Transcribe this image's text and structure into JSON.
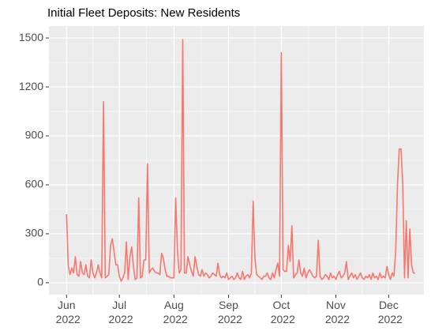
{
  "chart_data": {
    "type": "line",
    "title": "Initial Fleet Deposits: New Residents",
    "color": "#f8766d",
    "grid": true,
    "x": [
      "2022-06-01",
      "2022-06-02",
      "2022-06-03",
      "2022-06-04",
      "2022-06-05",
      "2022-06-06",
      "2022-06-07",
      "2022-06-08",
      "2022-06-09",
      "2022-06-10",
      "2022-06-11",
      "2022-06-12",
      "2022-06-13",
      "2022-06-14",
      "2022-06-15",
      "2022-06-16",
      "2022-06-17",
      "2022-06-18",
      "2022-06-19",
      "2022-06-20",
      "2022-06-21",
      "2022-06-22",
      "2022-06-23",
      "2022-06-24",
      "2022-06-25",
      "2022-06-26",
      "2022-06-27",
      "2022-06-28",
      "2022-06-29",
      "2022-06-30",
      "2022-07-01",
      "2022-07-02",
      "2022-07-03",
      "2022-07-04",
      "2022-07-05",
      "2022-07-06",
      "2022-07-07",
      "2022-07-08",
      "2022-07-09",
      "2022-07-10",
      "2022-07-11",
      "2022-07-12",
      "2022-07-13",
      "2022-07-14",
      "2022-07-15",
      "2022-07-16",
      "2022-07-17",
      "2022-07-18",
      "2022-07-19",
      "2022-07-20",
      "2022-07-21",
      "2022-07-22",
      "2022-07-23",
      "2022-07-24",
      "2022-07-25",
      "2022-07-26",
      "2022-07-27",
      "2022-07-28",
      "2022-07-29",
      "2022-07-30",
      "2022-07-31",
      "2022-08-01",
      "2022-08-02",
      "2022-08-03",
      "2022-08-04",
      "2022-08-05",
      "2022-08-06",
      "2022-08-07",
      "2022-08-08",
      "2022-08-09",
      "2022-08-10",
      "2022-08-11",
      "2022-08-12",
      "2022-08-13",
      "2022-08-14",
      "2022-08-15",
      "2022-08-16",
      "2022-08-17",
      "2022-08-18",
      "2022-08-19",
      "2022-08-20",
      "2022-08-21",
      "2022-08-22",
      "2022-08-23",
      "2022-08-24",
      "2022-08-25",
      "2022-08-26",
      "2022-08-27",
      "2022-08-28",
      "2022-08-29",
      "2022-08-30",
      "2022-08-31",
      "2022-09-01",
      "2022-09-02",
      "2022-09-03",
      "2022-09-04",
      "2022-09-05",
      "2022-09-06",
      "2022-09-07",
      "2022-09-08",
      "2022-09-09",
      "2022-09-10",
      "2022-09-11",
      "2022-09-12",
      "2022-09-13",
      "2022-09-14",
      "2022-09-15",
      "2022-09-16",
      "2022-09-17",
      "2022-09-18",
      "2022-09-19",
      "2022-09-20",
      "2022-09-21",
      "2022-09-22",
      "2022-09-23",
      "2022-09-24",
      "2022-09-25",
      "2022-09-26",
      "2022-09-27",
      "2022-09-28",
      "2022-09-29",
      "2022-09-30",
      "2022-10-01",
      "2022-10-02",
      "2022-10-03",
      "2022-10-04",
      "2022-10-05",
      "2022-10-06",
      "2022-10-07",
      "2022-10-08",
      "2022-10-09",
      "2022-10-10",
      "2022-10-11",
      "2022-10-12",
      "2022-10-13",
      "2022-10-14",
      "2022-10-15",
      "2022-10-16",
      "2022-10-17",
      "2022-10-18",
      "2022-10-19",
      "2022-10-20",
      "2022-10-21",
      "2022-10-22",
      "2022-10-23",
      "2022-10-24",
      "2022-10-25",
      "2022-10-26",
      "2022-10-27",
      "2022-10-28",
      "2022-10-29",
      "2022-10-30",
      "2022-10-31",
      "2022-11-01",
      "2022-11-02",
      "2022-11-03",
      "2022-11-04",
      "2022-11-05",
      "2022-11-06",
      "2022-11-07",
      "2022-11-08",
      "2022-11-09",
      "2022-11-10",
      "2022-11-11",
      "2022-11-12",
      "2022-11-13",
      "2022-11-14",
      "2022-11-15",
      "2022-11-16",
      "2022-11-17",
      "2022-11-18",
      "2022-11-19",
      "2022-11-20",
      "2022-11-21",
      "2022-11-22",
      "2022-11-23",
      "2022-11-24",
      "2022-11-25",
      "2022-11-26",
      "2022-11-27",
      "2022-11-28",
      "2022-11-29",
      "2022-11-30",
      "2022-12-01",
      "2022-12-02",
      "2022-12-03",
      "2022-12-04",
      "2022-12-05",
      "2022-12-06",
      "2022-12-07",
      "2022-12-08",
      "2022-12-09",
      "2022-12-10",
      "2022-12-11",
      "2022-12-12",
      "2022-12-13",
      "2022-12-14",
      "2022-12-15",
      "2022-12-16"
    ],
    "values": [
      420,
      100,
      50,
      90,
      60,
      160,
      50,
      40,
      130,
      60,
      50,
      110,
      40,
      30,
      140,
      60,
      30,
      60,
      110,
      60,
      30,
      1110,
      30,
      40,
      50,
      230,
      270,
      190,
      110,
      110,
      40,
      10,
      30,
      60,
      250,
      20,
      160,
      220,
      100,
      20,
      30,
      520,
      30,
      40,
      140,
      140,
      730,
      60,
      80,
      90,
      70,
      60,
      60,
      50,
      180,
      150,
      80,
      40,
      40,
      30,
      30,
      30,
      520,
      200,
      60,
      80,
      1490,
      60,
      60,
      160,
      110,
      70,
      40,
      160,
      100,
      50,
      40,
      80,
      40,
      60,
      50,
      30,
      40,
      60,
      50,
      40,
      120,
      50,
      30,
      40,
      30,
      60,
      20,
      30,
      40,
      20,
      30,
      60,
      30,
      20,
      70,
      20,
      40,
      50,
      30,
      60,
      500,
      150,
      50,
      40,
      30,
      20,
      40,
      40,
      60,
      30,
      20,
      60,
      30,
      80,
      120,
      40,
      1410,
      80,
      70,
      70,
      230,
      130,
      350,
      30,
      50,
      60,
      140,
      60,
      40,
      90,
      30,
      60,
      80,
      60,
      40,
      30,
      40,
      260,
      40,
      20,
      30,
      50,
      40,
      20,
      60,
      30,
      40,
      20,
      50,
      70,
      30,
      40,
      60,
      130,
      20,
      40,
      60,
      30,
      50,
      20,
      40,
      60,
      30,
      20,
      40,
      30,
      50,
      20,
      60,
      30,
      40,
      20,
      60,
      30,
      40,
      30,
      100,
      50,
      20,
      60,
      40,
      200,
      600,
      820,
      820,
      600,
      30,
      380,
      30,
      330,
      110,
      60,
      60
    ],
    "xlim": [
      "2022-05-22",
      "2022-12-21"
    ],
    "xticks": [
      {
        "value": "2022-06-01",
        "label": "Jun 2022"
      },
      {
        "value": "2022-07-01",
        "label": "Jul 2022"
      },
      {
        "value": "2022-08-01",
        "label": "Aug 2022"
      },
      {
        "value": "2022-09-01",
        "label": "Sep 2022"
      },
      {
        "value": "2022-10-01",
        "label": "Oct 2022"
      },
      {
        "value": "2022-11-01",
        "label": "Nov 2022"
      },
      {
        "value": "2022-12-01",
        "label": "Dec 2022"
      }
    ],
    "ylim": [
      -73,
      1573
    ],
    "yticks": [
      0,
      300,
      600,
      900,
      1200,
      1500
    ]
  }
}
